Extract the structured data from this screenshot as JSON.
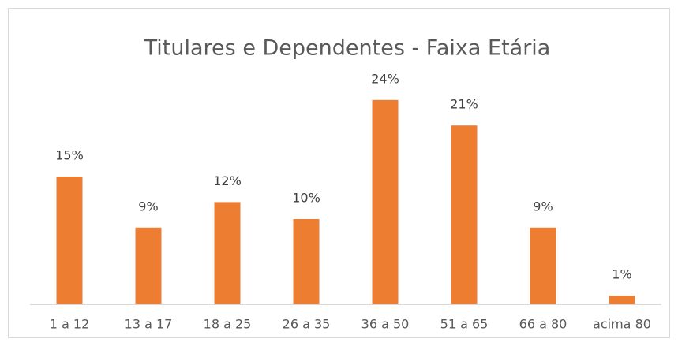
{
  "chart_data": {
    "type": "bar",
    "title": "Titulares e Dependentes - Faixa Etária",
    "categories": [
      "1 a 12",
      "13 a 17",
      "18 a 25",
      "26 a 35",
      "36 a 50",
      "51 a 65",
      "66 a 80",
      "acima 80"
    ],
    "values": [
      15,
      9,
      12,
      10,
      24,
      21,
      9,
      1
    ],
    "value_labels": [
      "15%",
      "9%",
      "12%",
      "10%",
      "24%",
      "21%",
      "9%",
      "1%"
    ],
    "color": "#ed7d31"
  }
}
